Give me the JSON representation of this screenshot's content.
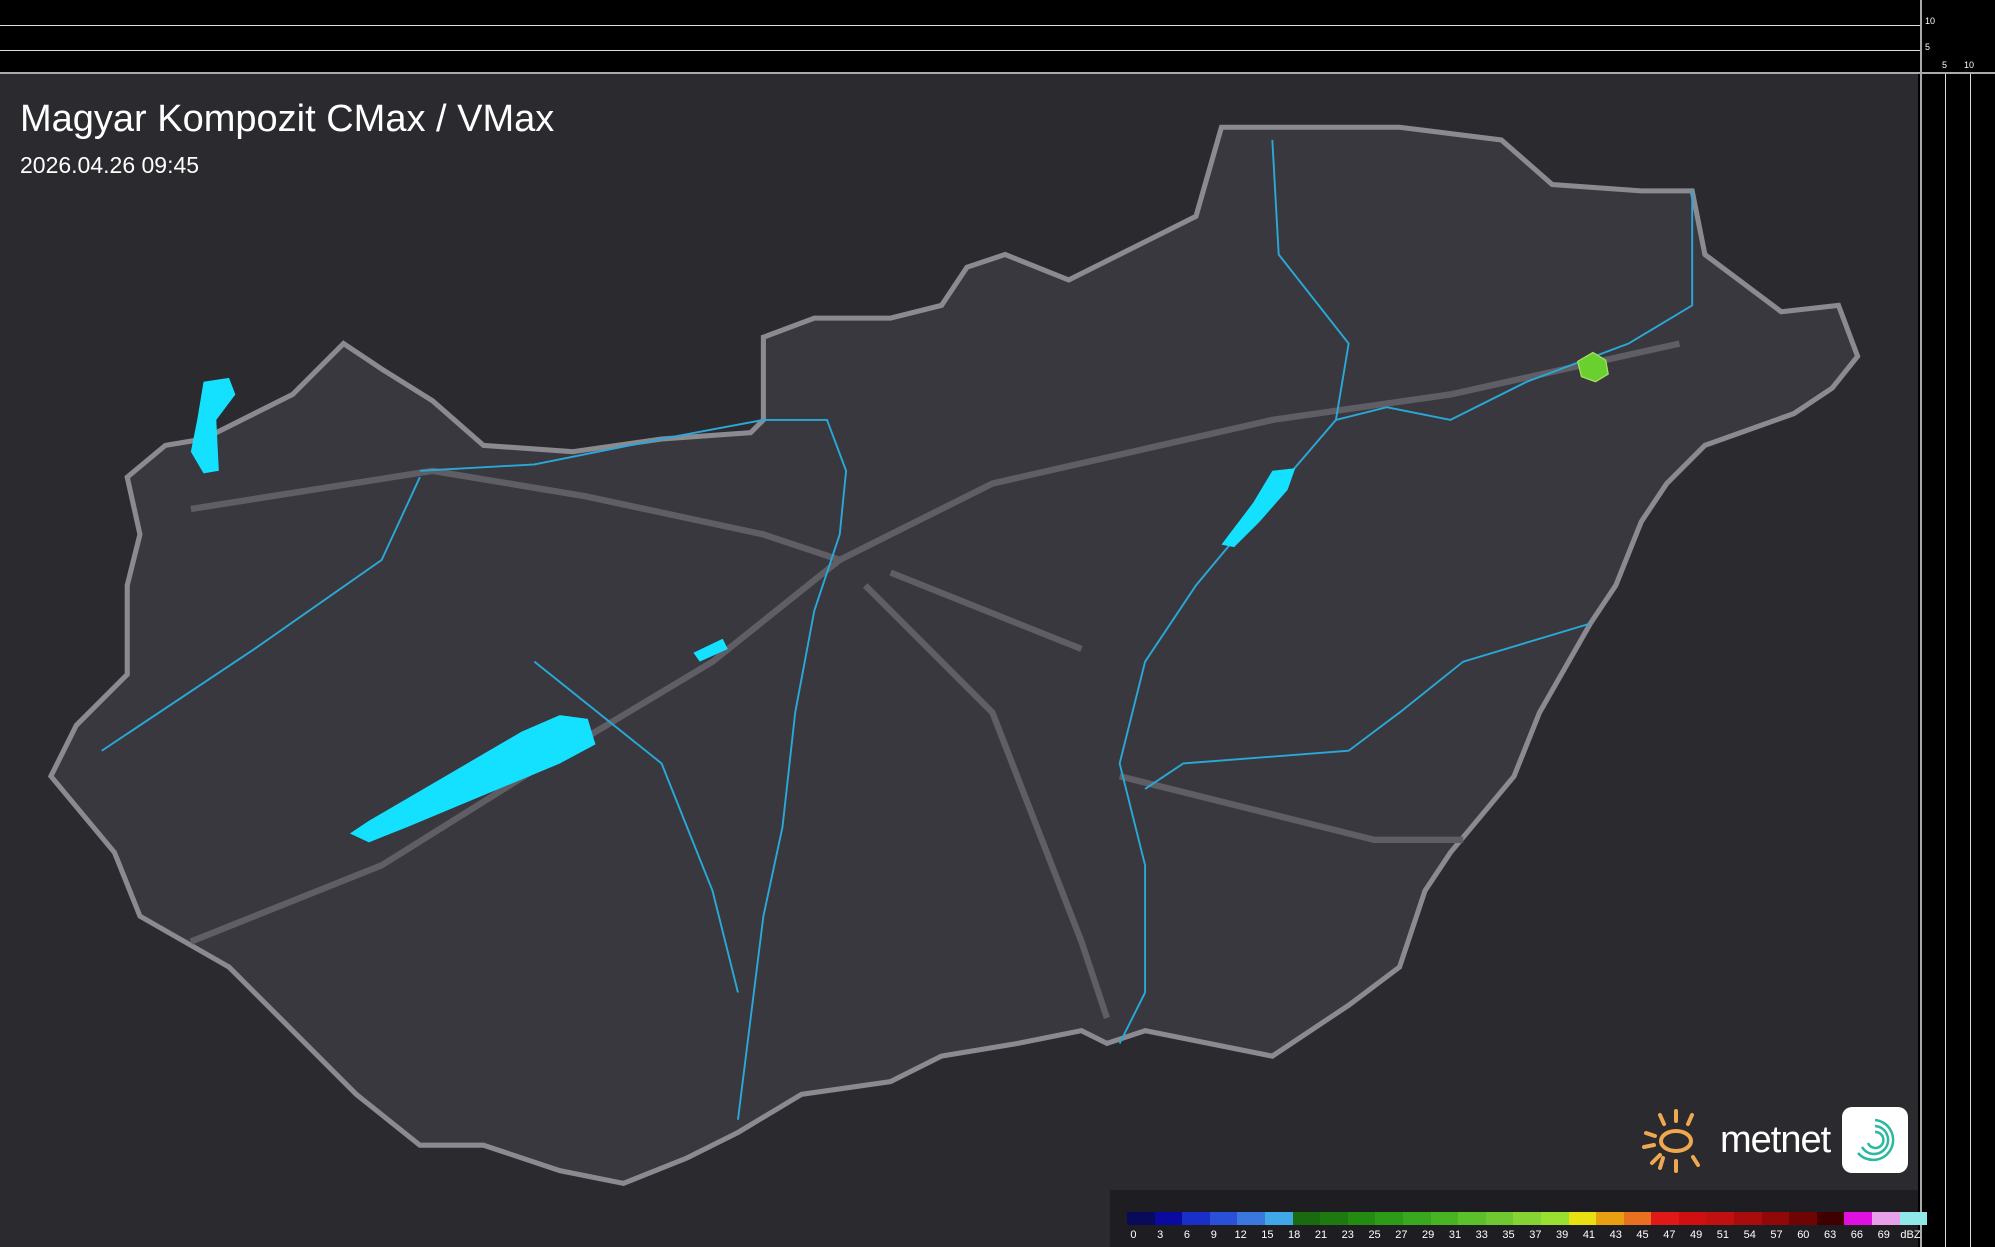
{
  "header": {
    "title": "Magyar Kompozit CMax / VMax",
    "timestamp": "2026.04.26 09:45"
  },
  "side_axis": {
    "vertical_ticks": [
      "10",
      "5"
    ],
    "horizontal_ticks": [
      "5",
      "10"
    ]
  },
  "legend": {
    "unit": "dBZ",
    "labels": [
      "0",
      "3",
      "6",
      "9",
      "12",
      "15",
      "18",
      "21",
      "23",
      "25",
      "27",
      "29",
      "31",
      "33",
      "35",
      "37",
      "39",
      "41",
      "43",
      "45",
      "47",
      "49",
      "51",
      "54",
      "57",
      "60",
      "63",
      "66",
      "69"
    ],
    "colors": [
      "#0a0a5a",
      "#0a0aa0",
      "#1a2ec8",
      "#2a50d8",
      "#3a78e0",
      "#40a8e8",
      "#1a6a10",
      "#1e7a10",
      "#238a12",
      "#2d9a18",
      "#3aa81e",
      "#48b424",
      "#5cc02a",
      "#70c830",
      "#86d434",
      "#9ae030",
      "#e8e010",
      "#e8a010",
      "#e87020",
      "#e01818",
      "#d01010",
      "#c01010",
      "#a80c0c",
      "#900808",
      "#700404",
      "#400000",
      "#e010e0",
      "#e8a0e8",
      "#90e8e8"
    ]
  },
  "branding": {
    "logo_text": "metnet",
    "icon": "metnet-swirl-app-icon"
  },
  "colors": {
    "background": "#2a2a2f",
    "country": "#38383e",
    "border": "#8a8a90",
    "water": "#14e0ff",
    "river": "#2aa8d8",
    "echo": "#6ad030"
  }
}
